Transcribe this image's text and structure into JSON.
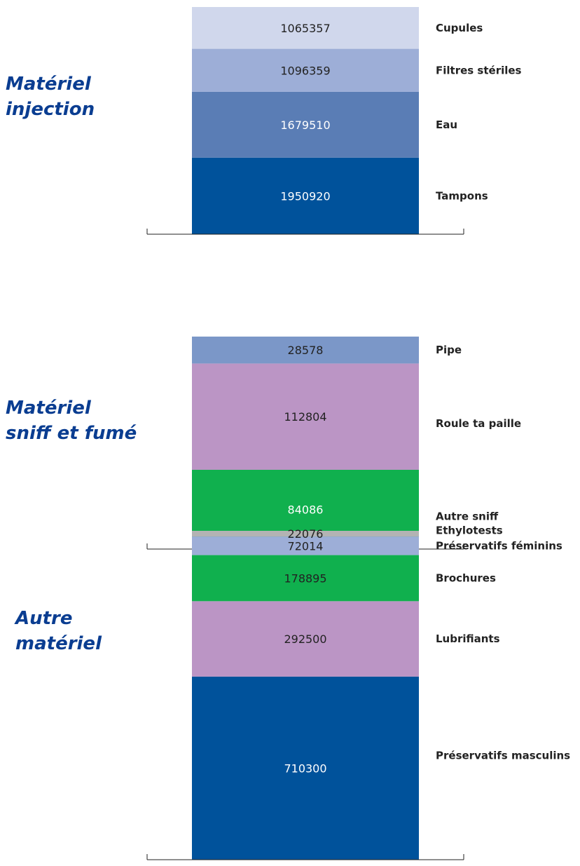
{
  "chart_data": [
    {
      "type": "bar",
      "stacked": true,
      "title_lines": [
        "Matériel",
        "injection"
      ],
      "categories": [
        "Tampons",
        "Eau",
        "Filtres stériles",
        "Cupules"
      ],
      "values": [
        1950920,
        1679510,
        1096359,
        1065357
      ],
      "value_labels": [
        "1950920",
        "1679510",
        "1096359",
        "1065357"
      ],
      "colors": [
        "#00529b",
        "#5a7db5",
        "#9daed7",
        "#d0d7ec"
      ],
      "label_colors": [
        "#ffffff",
        "#ffffff",
        "#222222",
        "#222222"
      ]
    },
    {
      "type": "bar",
      "stacked": true,
      "title_lines": [
        "Matériel",
        "sniff et fumé"
      ],
      "categories": [
        "Autre sniff",
        "Roule ta paille",
        "Pipe"
      ],
      "values": [
        84086,
        112804,
        28578
      ],
      "value_labels": [
        "84086",
        "112804",
        "28578"
      ],
      "colors": [
        "#10b04e",
        "#bb95c5",
        "#7b97c8"
      ],
      "label_colors": [
        "#ffffff",
        "#222222",
        "#222222"
      ]
    },
    {
      "type": "bar",
      "stacked": true,
      "title_lines": [
        "Autre",
        "matériel"
      ],
      "categories": [
        "Préservatifs masculins",
        "Lubrifiants",
        "Brochures",
        "Préservatifs féminins",
        "Ethylotests"
      ],
      "values": [
        710300,
        292500,
        178895,
        72014,
        22076
      ],
      "value_labels": [
        "710300",
        "292500",
        "178895",
        "72014",
        "22076"
      ],
      "colors": [
        "#00529b",
        "#bb95c5",
        "#10b04e",
        "#9daed7",
        "#b3b3b3"
      ],
      "label_colors": [
        "#ffffff",
        "#222222",
        "#222222",
        "#222222",
        "#222222"
      ]
    }
  ]
}
